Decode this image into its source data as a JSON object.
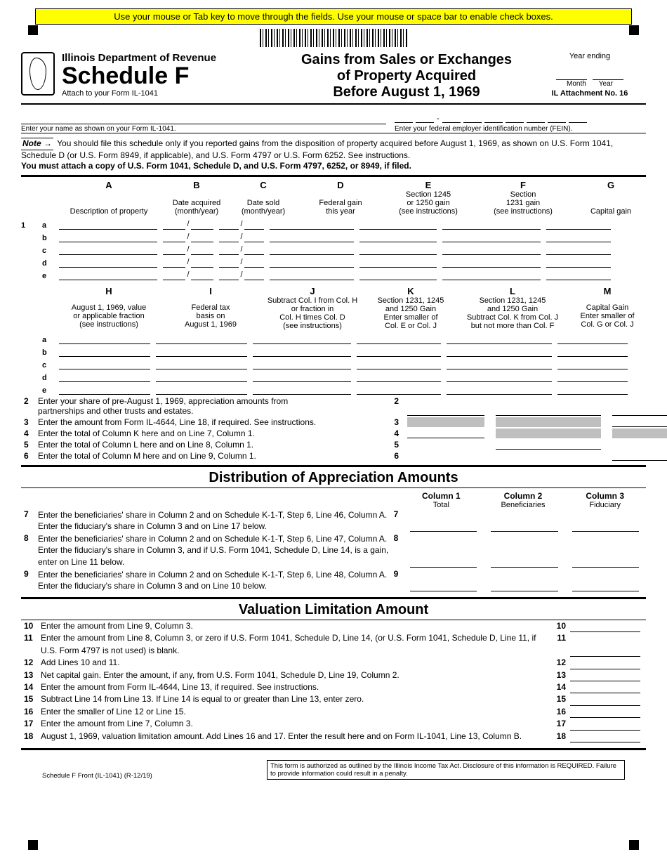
{
  "banner": "Use your mouse or Tab key to move through the fields. Use your mouse or space bar to enable check boxes.",
  "header": {
    "dept": "Illinois Department of Revenue",
    "schedule": "Schedule F",
    "attach": "Attach to your Form IL-1041",
    "title1": "Gains from Sales or Exchanges",
    "title2": "of Property Acquired",
    "title3": "Before August 1, 1969",
    "year_ending": "Year ending",
    "month": "Month",
    "year": "Year",
    "att_no": "IL Attachment No. 16"
  },
  "name_hint": "Enter your name as shown on your Form IL-1041.",
  "fein_hint": "Enter your federal employer identification number (FEIN).",
  "note_lead": "Note",
  "note_body1": "You should file this schedule only if you reported gains from the disposition of property acquired before August 1, 1969, as shown on U.S. Form 1041, Schedule D (or U.S. Form 8949, if applicable), and U.S. Form 4797 or U.S. Form 6252. See instructions.",
  "note_body2": "You must attach a copy of U.S. Form 1041, Schedule D, and U.S. Form 4797, 6252, or 8949, if filed.",
  "cols1": {
    "A": {
      "lab": "A",
      "t1": "Description of property"
    },
    "B": {
      "lab": "B",
      "t1": "Date acquired",
      "t2": "(month/year)"
    },
    "C": {
      "lab": "C",
      "t1": "Date sold",
      "t2": "(month/year)"
    },
    "D": {
      "lab": "D",
      "t1": "Federal gain",
      "t2": "this year"
    },
    "E": {
      "lab": "E",
      "t1": "Section 1245",
      "t2": "or 1250 gain",
      "t3": "(see instructions)"
    },
    "F": {
      "lab": "F",
      "t1": "Section",
      "t2": "1231 gain",
      "t3": "(see instructions)"
    },
    "G": {
      "lab": "G",
      "t1": "Capital gain"
    }
  },
  "row1_num": "1",
  "row_letters": [
    "a",
    "b",
    "c",
    "d",
    "e"
  ],
  "cols2": {
    "H": {
      "lab": "H",
      "t1": "August 1, 1969, value",
      "t2": "or applicable fraction",
      "t3": "(see instructions)"
    },
    "I": {
      "lab": "I",
      "t1": "Federal tax",
      "t2": "basis on",
      "t3": "August 1, 1969"
    },
    "J": {
      "lab": "J",
      "t1": "Subtract Col. I from Col. H",
      "t2": "or fraction in",
      "t3": "Col. H times Col. D",
      "t4": "(see instructions)"
    },
    "K": {
      "lab": "K",
      "t1": "Section 1231, 1245",
      "t2": "and 1250 Gain",
      "t3": "Enter smaller of",
      "t4": "Col. E or Col. J"
    },
    "L": {
      "lab": "L",
      "t1": "Section 1231, 1245",
      "t2": "and 1250 Gain",
      "t3": "Subtract Col. K from  Col. J",
      "t4": "but not more than Col. F"
    },
    "M": {
      "lab": "M",
      "t1": "Capital Gain",
      "t2": "Enter smaller of",
      "t3": "Col. G or Col. J"
    }
  },
  "sums": {
    "l2a": "Enter your share of pre-August 1, 1969, appreciation amounts from",
    "l2b": "partnerships and other trusts and estates.",
    "l3": "Enter the amount from Form IL-4644, Line 18, if required. See instructions.",
    "l4": "Enter the total of Column K here and on Line 7, Column 1.",
    "l5": "Enter the total of Column L here and on Line 8, Column 1.",
    "l6": "Enter the total of Column M here and on Line 9, Column 1.",
    "n2": "2",
    "n3": "3",
    "n4": "4",
    "n5": "5",
    "n6": "6"
  },
  "dist_title": "Distribution of Appreciation Amounts",
  "dist_cols": {
    "c1": "Column 1",
    "c1s": "Total",
    "c2": "Column 2",
    "c2s": "Beneficiaries",
    "c3": "Column 3",
    "c3s": "Fiduciary"
  },
  "dist": {
    "l7": "Enter the beneficiaries' share in Column 2 and on Schedule K-1-T, Step 6, Line 46, Column A. Enter the fiduciary's share in Column 3 and on Line 17 below.",
    "l8": "Enter the beneficiaries' share in Column 2 and on Schedule K-1-T, Step 6, Line 47, Column A. Enter the fiduciary's share in Column 3, and if U.S. Form 1041, Schedule D, Line 14, is a gain, enter on Line 11 below.",
    "l9": "Enter the beneficiaries' share in Column 2 and on Schedule K-1-T, Step 6, Line 48, Column A. Enter the fiduciary's share in Column 3 and on Line 10 below.",
    "n7": "7",
    "n8": "8",
    "n9": "9"
  },
  "val_title": "Valuation Limitation Amount",
  "val": {
    "l10": "Enter the amount from Line 9, Column 3.",
    "l11": "Enter the amount from Line 8, Column 3, or zero if U.S. Form 1041, Schedule D, Line 14, (or U.S. Form 1041, Schedule D, Line 11, if U.S. Form 4797 is not used) is blank.",
    "l12": "Add Lines 10 and 11.",
    "l13": "Net capital gain. Enter the amount, if any, from U.S. Form 1041, Schedule D, Line 19, Column 2.",
    "l14": "Enter the amount from Form IL-4644, Line 13, if required. See instructions.",
    "l15": "Subtract Line 14 from Line 13. If Line 14 is equal to or greater than Line 13, enter zero.",
    "l16": "Enter the smaller of Line 12 or Line 15.",
    "l17": "Enter the amount from Line 7, Column 3.",
    "l18": "August 1, 1969, valuation limitation amount. Add Lines 16 and 17. Enter the result here and on Form IL-1041, Line 13, Column B.",
    "n10": "10",
    "n11": "11",
    "n12": "12",
    "n13": "13",
    "n14": "14",
    "n15": "15",
    "n16": "16",
    "n17": "17",
    "n18": "18"
  },
  "footer": {
    "left": "Schedule F Front (IL-1041) (R-12/19)",
    "right": "This form is authorized as outlined by the Illinois Income Tax Act. Disclosure of this information is REQUIRED. Failure to provide information could result in a penalty."
  }
}
